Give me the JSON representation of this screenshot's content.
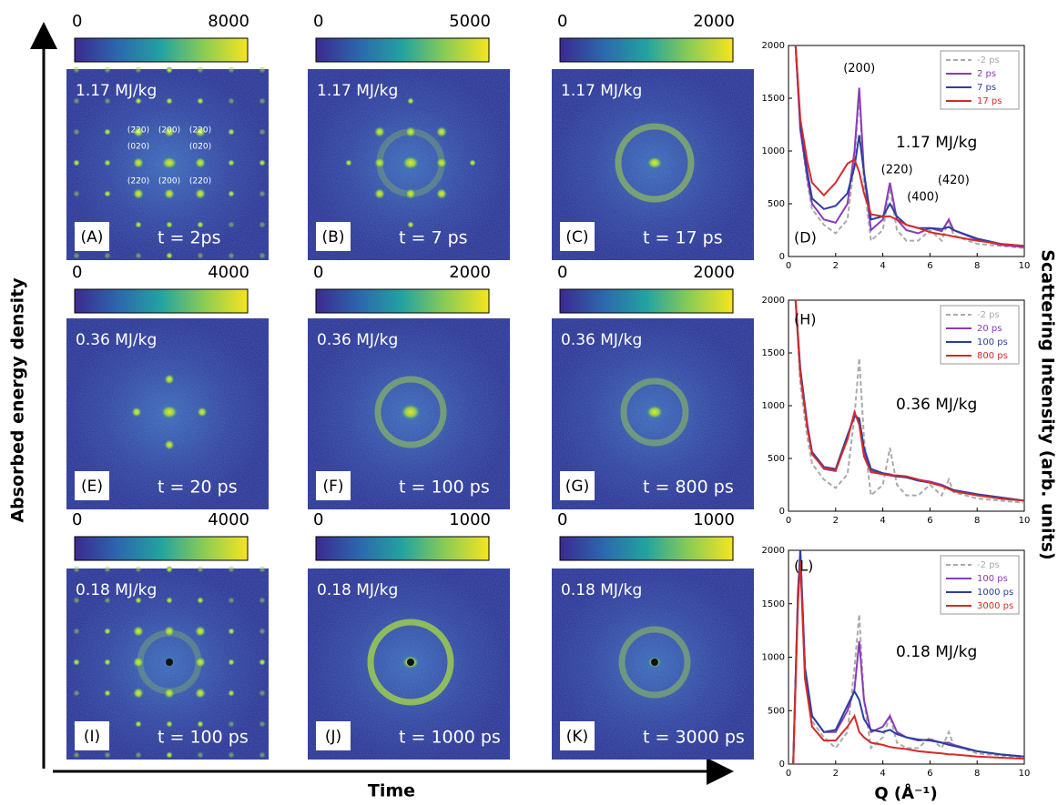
{
  "axis_label_y": "Absorbed energy density",
  "axis_label_x": "Time",
  "panels": [
    {
      "scale_min": 0,
      "scale_max": 8000,
      "energy": "1.17 MJ/kg",
      "letter": "(A)",
      "time": "t = 2ps",
      "indices": [
        "(2̄20)",
        "(200)",
        "(220)",
        "(020)",
        "(02̄0)",
        "(2̄2̄0)",
        "(2̄00)",
        "(22̄0)"
      ]
    },
    {
      "scale_min": 0,
      "scale_max": 5000,
      "energy": "1.17 MJ/kg",
      "letter": "(B)",
      "time": "t = 7 ps"
    },
    {
      "scale_min": 0,
      "scale_max": 2000,
      "energy": "1.17 MJ/kg",
      "letter": "(C)",
      "time": "t = 17 ps"
    },
    {
      "scale_min": 0,
      "scale_max": 4000,
      "energy": "0.36 MJ/kg",
      "letter": "(E)",
      "time": "t = 20 ps"
    },
    {
      "scale_min": 0,
      "scale_max": 2000,
      "energy": "0.36 MJ/kg",
      "letter": "(F)",
      "time": "t = 100 ps"
    },
    {
      "scale_min": 0,
      "scale_max": 2000,
      "energy": "0.36 MJ/kg",
      "letter": "(G)",
      "time": "t = 800 ps"
    },
    {
      "scale_min": 0,
      "scale_max": 4000,
      "energy": "0.18 MJ/kg",
      "letter": "(I)",
      "time": "t = 100 ps"
    },
    {
      "scale_min": 0,
      "scale_max": 1000,
      "energy": "0.18 MJ/kg",
      "letter": "(J)",
      "time": "t = 1000 ps"
    },
    {
      "scale_min": 0,
      "scale_max": 1000,
      "energy": "0.18 MJ/kg",
      "letter": "(K)",
      "time": "t = 3000 ps"
    }
  ],
  "intensity_axis_label": "Scattering Intensity (arb. units)",
  "q_axis_label": "Q (Å⁻¹)",
  "chart_data": [
    {
      "type": "line",
      "letter": "(D)",
      "energy": "1.17 MJ/kg",
      "annotations": [
        "(200)",
        "(220)",
        "(400)",
        "(420)"
      ],
      "x": [
        0.3,
        0.5,
        0.8,
        1,
        1.5,
        2,
        2.5,
        2.8,
        3,
        3.2,
        3.5,
        4,
        4.3,
        4.6,
        5,
        5.5,
        6,
        6.5,
        6.8,
        7,
        8,
        9,
        10
      ],
      "xlim": [
        0,
        10
      ],
      "xticks": [
        0,
        2,
        4,
        6,
        8,
        10
      ],
      "ylim": [
        0,
        2000
      ],
      "yticks": [
        0,
        500,
        1000,
        1500,
        2000
      ],
      "series": [
        {
          "name": "-2 ps",
          "color": "#aaaaaa",
          "dashed": true,
          "values": [
            2000,
            1200,
            700,
            450,
            300,
            220,
            350,
            900,
            1550,
            700,
            150,
            250,
            650,
            250,
            150,
            150,
            250,
            150,
            350,
            200,
            120,
            100,
            80
          ]
        },
        {
          "name": "2 ps",
          "color": "#8a3ab9",
          "values": [
            2000,
            1200,
            750,
            500,
            350,
            320,
            500,
            1000,
            1600,
            800,
            250,
            350,
            700,
            350,
            250,
            220,
            270,
            240,
            350,
            250,
            160,
            110,
            90
          ]
        },
        {
          "name": "7 ps",
          "color": "#2a3f9e",
          "values": [
            2000,
            1250,
            800,
            550,
            450,
            480,
            600,
            850,
            1150,
            800,
            350,
            380,
            500,
            380,
            300,
            270,
            270,
            260,
            280,
            250,
            170,
            120,
            100
          ]
        },
        {
          "name": "17 ps",
          "color": "#d42a2a",
          "values": [
            2000,
            1300,
            900,
            700,
            580,
            700,
            880,
            920,
            800,
            600,
            400,
            380,
            380,
            350,
            300,
            270,
            230,
            210,
            200,
            190,
            150,
            120,
            100
          ]
        }
      ]
    },
    {
      "type": "line",
      "letter": "(H)",
      "energy": "0.36 MJ/kg",
      "x": [
        0.3,
        0.5,
        0.8,
        1,
        1.5,
        2,
        2.5,
        2.8,
        3,
        3.2,
        3.5,
        4,
        4.3,
        4.6,
        5,
        5.5,
        6,
        6.5,
        6.8,
        7,
        8,
        9,
        10
      ],
      "xlim": [
        0,
        10
      ],
      "xticks": [
        0,
        2,
        4,
        6,
        8,
        10
      ],
      "ylim": [
        0,
        2000
      ],
      "yticks": [
        0,
        500,
        1000,
        1500,
        2000
      ],
      "series": [
        {
          "name": "-2 ps",
          "color": "#aaaaaa",
          "dashed": true,
          "values": [
            2000,
            1200,
            700,
            450,
            300,
            220,
            350,
            900,
            1450,
            700,
            150,
            250,
            600,
            250,
            150,
            150,
            250,
            150,
            300,
            180,
            120,
            100,
            80
          ]
        },
        {
          "name": "20 ps",
          "color": "#8a3ab9",
          "values": [
            2000,
            1300,
            800,
            550,
            400,
            380,
            700,
            930,
            850,
            550,
            380,
            360,
            350,
            330,
            330,
            300,
            280,
            250,
            220,
            200,
            160,
            120,
            100
          ]
        },
        {
          "name": "100 ps",
          "color": "#2a3f9e",
          "values": [
            2000,
            1350,
            820,
            560,
            420,
            400,
            720,
            900,
            880,
            600,
            400,
            360,
            340,
            330,
            320,
            290,
            270,
            240,
            220,
            200,
            160,
            130,
            100
          ]
        },
        {
          "name": "800 ps",
          "color": "#d42a2a",
          "values": [
            2000,
            1300,
            790,
            540,
            410,
            390,
            680,
            940,
            820,
            520,
            370,
            350,
            340,
            340,
            330,
            300,
            270,
            240,
            210,
            190,
            150,
            120,
            100
          ]
        }
      ]
    },
    {
      "type": "line",
      "letter": "(L)",
      "energy": "0.18 MJ/kg",
      "x": [
        0.2,
        0.4,
        0.5,
        0.7,
        1,
        1.5,
        2,
        2.5,
        2.8,
        3,
        3.2,
        3.5,
        4,
        4.3,
        4.6,
        5,
        5.5,
        6,
        6.5,
        6.8,
        7,
        8,
        9,
        10
      ],
      "xlim": [
        0,
        10
      ],
      "xticks": [
        0,
        2,
        4,
        6,
        8,
        10
      ],
      "ylim": [
        0,
        2000
      ],
      "yticks": [
        0,
        500,
        1000,
        1500,
        2000
      ],
      "series": [
        {
          "name": "-2 ps",
          "color": "#aaaaaa",
          "dashed": true,
          "values": [
            0,
            1500,
            2000,
            800,
            400,
            250,
            150,
            300,
            900,
            1400,
            600,
            150,
            250,
            450,
            200,
            150,
            150,
            250,
            150,
            300,
            180,
            100,
            80,
            60
          ]
        },
        {
          "name": "100 ps",
          "color": "#8a3ab9",
          "values": [
            0,
            1600,
            2000,
            900,
            450,
            300,
            300,
            500,
            700,
            1150,
            600,
            300,
            350,
            450,
            300,
            250,
            220,
            230,
            200,
            200,
            180,
            120,
            90,
            70
          ]
        },
        {
          "name": "1000 ps",
          "color": "#2a3f9e",
          "values": [
            0,
            1600,
            2000,
            900,
            450,
            300,
            320,
            550,
            680,
            600,
            420,
            320,
            300,
            320,
            280,
            250,
            230,
            220,
            200,
            180,
            170,
            120,
            90,
            70
          ]
        },
        {
          "name": "3000 ps",
          "color": "#d42a2a",
          "values": [
            0,
            1500,
            1900,
            800,
            350,
            220,
            220,
            350,
            450,
            300,
            250,
            200,
            180,
            160,
            150,
            140,
            120,
            110,
            100,
            90,
            90,
            70,
            60,
            50
          ]
        }
      ]
    }
  ]
}
